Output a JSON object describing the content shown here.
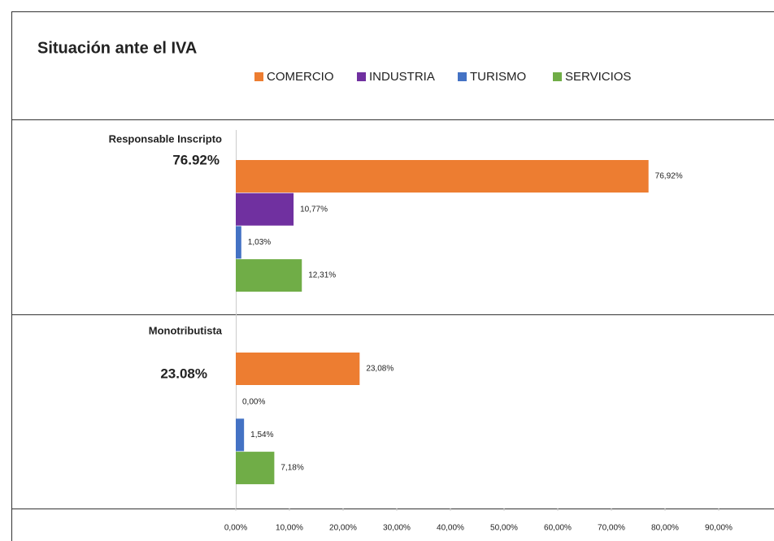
{
  "chart_data": {
    "type": "bar",
    "orientation": "horizontal",
    "title": "Situación ante el IVA",
    "categories": [
      "Responsable Inscripto",
      "Monotributista"
    ],
    "group_labels": [
      "76.92%",
      "23.08%"
    ],
    "series": [
      {
        "name": "COMERCIO",
        "color": "#ed7d31",
        "values": [
          76.92,
          23.08
        ],
        "value_labels": [
          "76,92%",
          "23,08%"
        ]
      },
      {
        "name": "INDUSTRIA",
        "color": "#7030a0",
        "values": [
          10.77,
          0
        ],
        "value_labels": [
          "10,77%",
          "0,00%"
        ]
      },
      {
        "name": "TURISMO",
        "color": "#4472c4",
        "values": [
          1.03,
          1.54
        ],
        "value_labels": [
          "1,03%",
          "1,54%"
        ]
      },
      {
        "name": "SERVICIOS",
        "color": "#70ad47",
        "values": [
          12.31,
          7.18
        ],
        "value_labels": [
          "12,31%",
          "7,18%"
        ]
      }
    ],
    "xlim": [
      0,
      90
    ],
    "xticks": [
      {
        "value": 0,
        "label": "0,00%"
      },
      {
        "value": 10,
        "label": "10,00%"
      },
      {
        "value": 20,
        "label": "20,00%"
      },
      {
        "value": 30,
        "label": "30,00%"
      },
      {
        "value": 40,
        "label": "40,00%"
      },
      {
        "value": 50,
        "label": "50,00%"
      },
      {
        "value": 60,
        "label": "60,00%"
      },
      {
        "value": 70,
        "label": "70,00%"
      },
      {
        "value": 80,
        "label": "80,00%"
      },
      {
        "value": 90,
        "label": "90,00%"
      }
    ],
    "legend": "top"
  }
}
